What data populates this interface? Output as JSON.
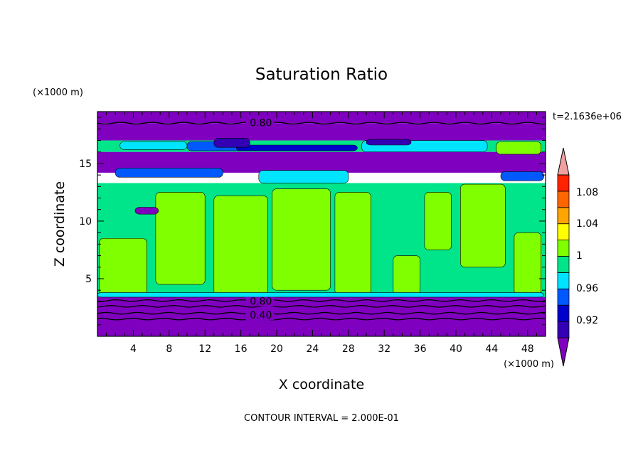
{
  "chart_data": {
    "type": "heatmap",
    "title": "Saturation Ratio",
    "xlabel": "X coordinate",
    "ylabel": "Z coordinate",
    "x_unit": "(×1000 m)",
    "y_unit": "(×1000 m)",
    "xlim": [
      0,
      50
    ],
    "ylim": [
      0,
      19.5
    ],
    "xticks": [
      4,
      8,
      12,
      16,
      20,
      24,
      28,
      32,
      36,
      40,
      44,
      48
    ],
    "yticks": [
      5,
      10,
      15
    ],
    "time_label": "t=2.1636e+06",
    "footer": "CONTOUR INTERVAL = 2.000E-01",
    "contour_labels": [
      {
        "text": "0.80",
        "x": 17,
        "z": 18.3
      },
      {
        "text": "0.80",
        "x": 17,
        "z": 2.8
      },
      {
        "text": "0.40",
        "x": 17,
        "z": 1.6
      }
    ],
    "contour_lines_z": [
      18.5,
      3.1,
      2.6,
      2.0,
      1.5
    ],
    "colorbar": {
      "labels": [
        "1.08",
        "1.04",
        "1",
        "0.96",
        "0.92"
      ],
      "levels": [
        0.92,
        0.94,
        0.96,
        0.98,
        1.0,
        1.02,
        1.04,
        1.06,
        1.08
      ],
      "colors": [
        "#7f00bf",
        "#3300b3",
        "#0000cc",
        "#0059ff",
        "#00e5ff",
        "#00e58a",
        "#80ff00",
        "#ffff00",
        "#ffa500",
        "#ff6600",
        "#ff2200",
        "#f0a0a0"
      ]
    },
    "bands": [
      {
        "z": [
          18.5,
          19.5
        ],
        "color": "#7f00bf"
      },
      {
        "z": [
          17.0,
          18.5
        ],
        "color": "#7f00bf"
      },
      {
        "z": [
          16.0,
          17.0
        ],
        "color": "#00e58a"
      },
      {
        "z": [
          14.2,
          16.0
        ],
        "color": "#7f00bf"
      },
      {
        "z": [
          3.4,
          13.3
        ],
        "color": "#00e58a"
      },
      {
        "z": [
          0,
          3.4
        ],
        "color": "#7f00bf"
      }
    ],
    "regions": [
      {
        "color": "#80ff00",
        "x": [
          0.2,
          5.5
        ],
        "z": [
          3.5,
          8.5
        ]
      },
      {
        "color": "#80ff00",
        "x": [
          6.5,
          12.0
        ],
        "z": [
          4.5,
          12.5
        ]
      },
      {
        "color": "#80ff00",
        "x": [
          13.0,
          19.0
        ],
        "z": [
          3.5,
          12.2
        ]
      },
      {
        "color": "#80ff00",
        "x": [
          19.5,
          26.0
        ],
        "z": [
          4.0,
          12.8
        ]
      },
      {
        "color": "#80ff00",
        "x": [
          26.5,
          30.5
        ],
        "z": [
          3.6,
          12.5
        ]
      },
      {
        "color": "#80ff00",
        "x": [
          33.0,
          36.0
        ],
        "z": [
          3.6,
          7.0
        ]
      },
      {
        "color": "#80ff00",
        "x": [
          36.5,
          39.5
        ],
        "z": [
          7.5,
          12.5
        ]
      },
      {
        "color": "#80ff00",
        "x": [
          40.5,
          45.5
        ],
        "z": [
          6.0,
          13.2
        ]
      },
      {
        "color": "#80ff00",
        "x": [
          46.5,
          49.5
        ],
        "z": [
          3.6,
          9.0
        ]
      },
      {
        "color": "#80ff00",
        "x": [
          44.5,
          49.5
        ],
        "z": [
          15.8,
          16.9
        ]
      },
      {
        "color": "#00e5ff",
        "x": [
          2.5,
          10.0
        ],
        "z": [
          16.2,
          16.9
        ]
      },
      {
        "color": "#00e5ff",
        "x": [
          29.5,
          43.5
        ],
        "z": [
          16.0,
          17.0
        ]
      },
      {
        "color": "#00e5ff",
        "x": [
          18.0,
          28.0
        ],
        "z": [
          13.3,
          14.4
        ]
      },
      {
        "color": "#00e5ff",
        "x": [
          0.0,
          49.8
        ],
        "z": [
          3.4,
          3.8
        ]
      },
      {
        "color": "#0059ff",
        "x": [
          10.0,
          16.5
        ],
        "z": [
          16.1,
          16.9
        ]
      },
      {
        "color": "#0059ff",
        "x": [
          2.0,
          14.0
        ],
        "z": [
          13.8,
          14.6
        ]
      },
      {
        "color": "#0059ff",
        "x": [
          45.0,
          49.8
        ],
        "z": [
          13.5,
          14.3
        ]
      },
      {
        "color": "#0000cc",
        "x": [
          15.5,
          29.0
        ],
        "z": [
          16.1,
          16.6
        ]
      },
      {
        "color": "#3300b3",
        "x": [
          13.0,
          17.0
        ],
        "z": [
          16.4,
          17.2
        ]
      },
      {
        "color": "#3300b3",
        "x": [
          30.0,
          35.0
        ],
        "z": [
          16.6,
          17.1
        ]
      },
      {
        "color": "#7f00bf",
        "x": [
          4.2,
          6.8
        ],
        "z": [
          10.6,
          11.2
        ]
      }
    ]
  }
}
